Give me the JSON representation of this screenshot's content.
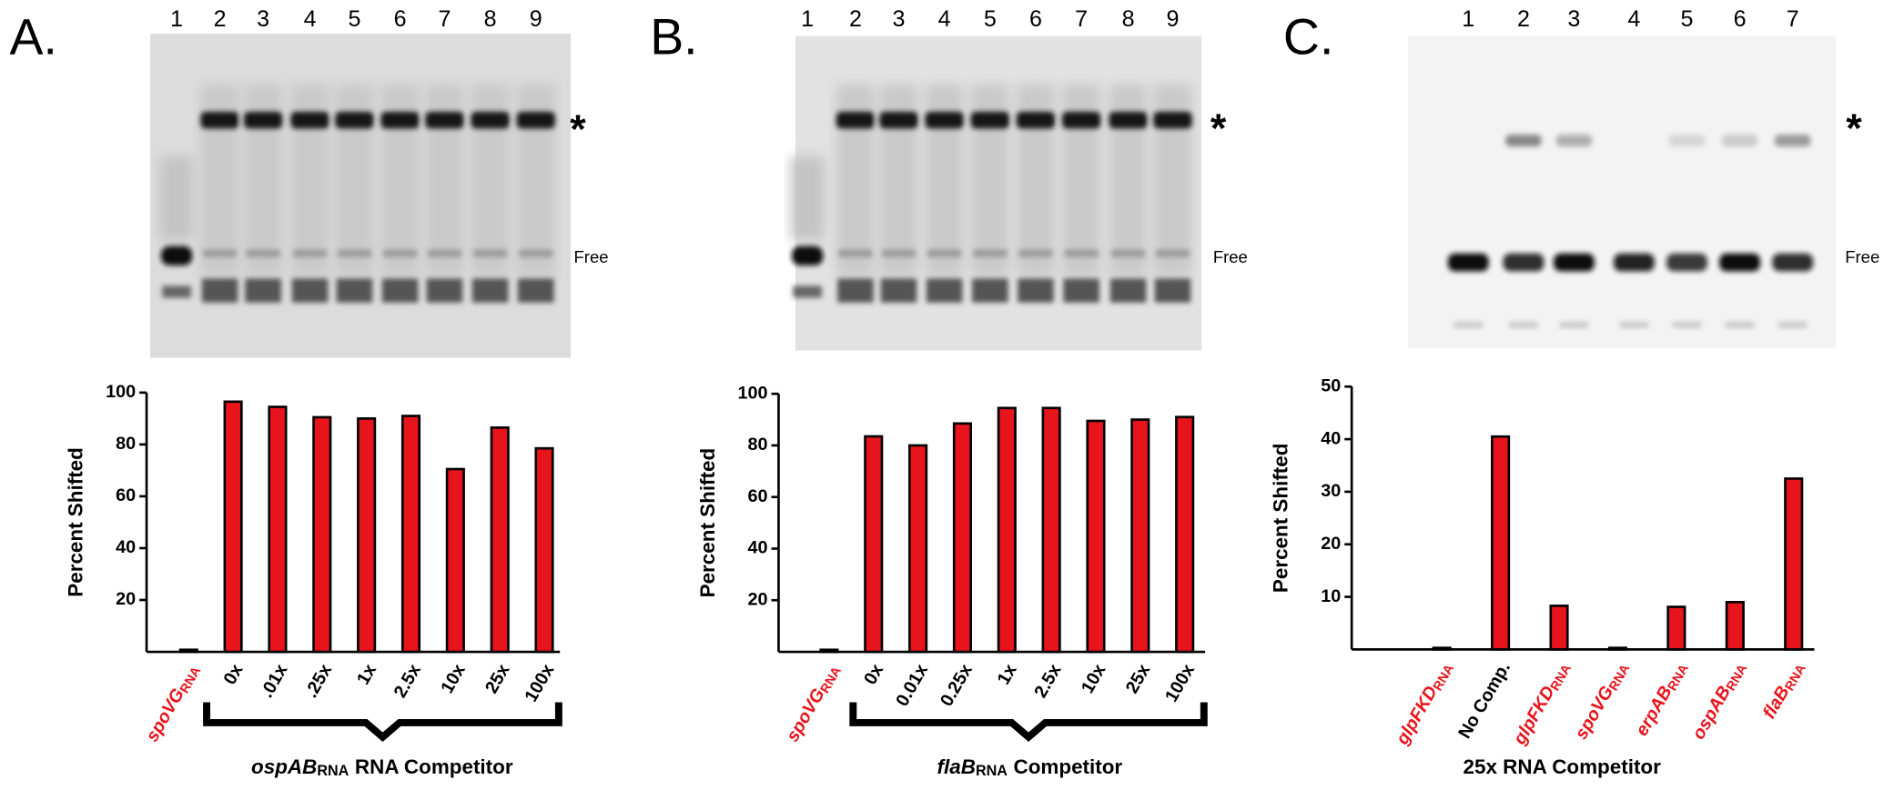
{
  "chart_data": [
    {
      "type": "bar",
      "panel_label": "A.",
      "lanes": [
        "1",
        "2",
        "3",
        "4",
        "5",
        "6",
        "7",
        "8",
        "9"
      ],
      "band_labels": [
        "*",
        "Free"
      ],
      "ylabel": "Percent Shifted",
      "xlabel": {
        "italic": "ospAB",
        "sub": "RNA",
        "text": "RNA Competitor"
      },
      "categories": [
        {
          "italic": "spoVG",
          "sub": "RNA",
          "color": "#e8141c"
        },
        "0x",
        ".01x",
        ".25x",
        "1x",
        "2.5x",
        "10x",
        "25x",
        "100x"
      ],
      "values": [
        0.8,
        96.5,
        94.5,
        90.5,
        90,
        91,
        70.5,
        86.5,
        78.5
      ],
      "color": "#e8141c",
      "ylim": [
        0,
        100
      ],
      "yticks": [
        20,
        40,
        60,
        80,
        100
      ]
    },
    {
      "type": "bar",
      "panel_label": "B.",
      "lanes": [
        "1",
        "2",
        "3",
        "4",
        "5",
        "6",
        "7",
        "8",
        "9"
      ],
      "band_labels": [
        "*",
        "Free"
      ],
      "ylabel": "Percent Shifted",
      "xlabel": {
        "italic": "flaB",
        "sub": "RNA",
        "text": "Competitor"
      },
      "categories": [
        {
          "italic": "spoVG",
          "sub": "RNA",
          "color": "#e8141c"
        },
        "0x",
        "0.01x",
        "0.25x",
        "1x",
        "2.5x",
        "10x",
        "25x",
        "100x"
      ],
      "values": [
        0.8,
        83.5,
        80,
        88.5,
        94.5,
        94.5,
        89.5,
        90,
        91
      ],
      "color": "#e8141c",
      "ylim": [
        0,
        100
      ],
      "yticks": [
        20,
        40,
        60,
        80,
        100
      ]
    },
    {
      "type": "bar",
      "panel_label": "C.",
      "lanes": [
        "1",
        "2",
        "3",
        "4",
        "5",
        "6",
        "7"
      ],
      "band_labels": [
        "*",
        "Free"
      ],
      "ylabel": "Percent Shifted",
      "xlabel": "25x RNA Competitor",
      "categories": [
        {
          "italic": "glpFKD",
          "sub": "RNA",
          "color": "#e8141c"
        },
        "No Comp.",
        {
          "italic": "glpFKD",
          "sub": "RNA",
          "color": "#e8141c"
        },
        {
          "italic": "spoVG",
          "sub": "RNA",
          "color": "#e8141c"
        },
        {
          "italic": "erpAB",
          "sub": "RNA",
          "color": "#e8141c"
        },
        {
          "italic": "ospAB",
          "sub": "RNA",
          "color": "#e8141c"
        },
        {
          "italic": "flaB",
          "sub": "RNA",
          "color": "#e8141c"
        }
      ],
      "values": [
        0.3,
        40.5,
        8.3,
        0.3,
        8.1,
        9,
        32.5
      ],
      "color": "#e8141c",
      "ylim": [
        0,
        50
      ],
      "yticks": [
        10,
        20,
        30,
        40,
        50
      ]
    }
  ]
}
